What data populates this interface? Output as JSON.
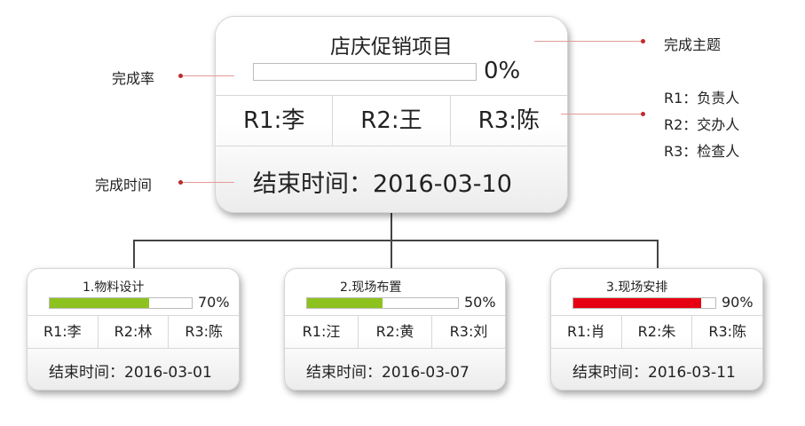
{
  "main": {
    "title": "店庆促销项目",
    "progress": 0,
    "progress_label": "0%",
    "roles": [
      "R1:李",
      "R2:王",
      "R3:陈"
    ],
    "end_date": "结束时间：2016-03-10"
  },
  "annotations": {
    "theme": "完成主题",
    "rate": "完成率",
    "time": "完成时间",
    "roles": [
      "R1：负责人",
      "R2：交办人",
      "R3：检查人"
    ]
  },
  "tasks": [
    {
      "title": "1.物料设计",
      "progress": 70,
      "progress_label": "70%",
      "color": "#8dc21f",
      "roles": [
        "R1:李",
        "R2:林",
        "R3:陈"
      ],
      "end_date": "结束时间：2016-03-01"
    },
    {
      "title": "2.现场布置",
      "progress": 50,
      "progress_label": "50%",
      "color": "#8dc21f",
      "roles": [
        "R1:汪",
        "R2:黄",
        "R3:刘"
      ],
      "end_date": "结束时间：2016-03-07"
    },
    {
      "title": "3.现场安排",
      "progress": 90,
      "progress_label": "90%",
      "color": "#e60012",
      "roles": [
        "R1:肖",
        "R2:朱",
        "R3:陈"
      ],
      "end_date": "结束时间：2016-03-11"
    }
  ]
}
